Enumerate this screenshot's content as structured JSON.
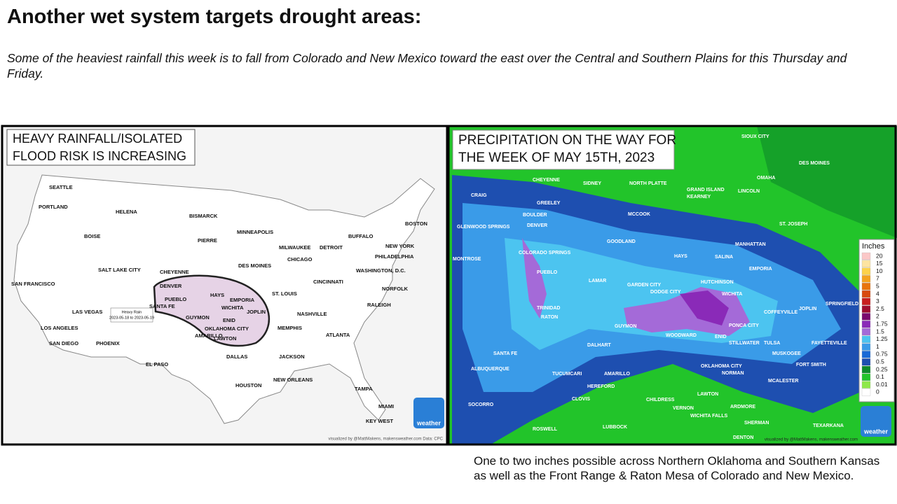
{
  "header": {
    "title": "Another wet system targets drought areas:",
    "subtitle": "Some of the heaviest rainfall this week is to fall from Colorado and New Mexico toward the east over the Central and Southern Plains for this Thursday and Friday."
  },
  "panels": [
    {
      "title": [
        "HEAVY RAINFALL/ISOLATED",
        "FLOOD RISK IS INCREASING"
      ],
      "labels": [
        "SEATTLE",
        "PORTLAND",
        "HELENA",
        "BOISE",
        "SALT LAKE CITY",
        "CHEYENNE",
        "DENVER",
        "SAN FRANCISCO",
        "LAS VEGAS",
        "LOS ANGELES",
        "SAN DIEGO",
        "PHOENIX",
        "SANTA FE",
        "OKLAHOMA CITY",
        "DALLAS",
        "HOUSTON",
        "BISMARCK",
        "PIERRE",
        "MINNEAPOLIS",
        "DES MOINES",
        "MILWAUKEE",
        "CHICAGO",
        "DETROIT",
        "ST. LOUIS",
        "NASHVILLE",
        "MEMPHIS",
        "ATLANTA",
        "JACKSON",
        "NEW ORLEANS",
        "TAMPA",
        "MIAMI",
        "RALEIGH",
        "NORFOLK",
        "WASHINGTON, D.C.",
        "PHILADELPHIA",
        "NEW YORK",
        "BOSTON",
        "BUFFALO",
        "CINCINNATI",
        "PUEBLO",
        "HAYS",
        "EMPORIA",
        "WICHITA",
        "JOPLIN",
        "GUYMON",
        "ENID",
        "LAWTON",
        "AMARILLO",
        "EL PASO",
        "KEY WEST"
      ],
      "annotation": [
        "Heavy Rain",
        "2023-05-18 to 2023-05-19"
      ],
      "credit": "visualized by @MattMakens, makensweather.com Data: CPC",
      "logo": "weather"
    },
    {
      "title": [
        "PRECIPITATION ON THE WAY FOR",
        "THE WEEK OF MAY 15TH, 2023"
      ],
      "labels": [
        "CHEYENNE",
        "DENVER",
        "BOULDER",
        "GREELEY",
        "COLORADO SPRINGS",
        "PUEBLO",
        "TRINIDAD",
        "RATON",
        "SANTA FE",
        "ALBUQUERQUE",
        "GUYMON",
        "GARDEN CITY",
        "DODGE CITY",
        "HAYS",
        "SALINA",
        "HUTCHINSON",
        "WICHITA",
        "EMPORIA",
        "MANHATTAN",
        "OMAHA",
        "LINCOLN",
        "DES MOINES",
        "OKLAHOMA CITY",
        "ENID",
        "PONCA CITY",
        "WOODWARD",
        "STILLWATER",
        "TULSA",
        "NORMAN",
        "LAWTON",
        "AMARILLO",
        "DALHART",
        "CLOVIS",
        "LUBBOCK",
        "ROSWELL",
        "WICHITA FALLS",
        "ARDMORE",
        "SHERMAN",
        "DENTON",
        "TUCUMCARI",
        "HEREFORD",
        "CHILDRESS",
        "VERNON",
        "COFFEYVILLE",
        "JOPLIN",
        "SPRINGFIELD",
        "FAYETTEVILLE",
        "FORT SMITH",
        "MUSKOGEE",
        "MCALESTER",
        "TEXARKANA",
        "GOODLAND",
        "LAMAR",
        "NORTH PLATTE",
        "KEARNEY",
        "GRAND ISLAND",
        "SIOUX CITY",
        "MCCOOK",
        "ST. JOSEPH",
        "GLENWOOD SPRINGS",
        "CRAIG",
        "MONTROSE",
        "SOCORRO",
        "SIDNEY"
      ],
      "legend": {
        "title": "Inches",
        "items": [
          {
            "label": "20",
            "color": "#fbc8c8"
          },
          {
            "label": "15",
            "color": "#fde4a0"
          },
          {
            "label": "10",
            "color": "#fdd24a"
          },
          {
            "label": "7",
            "color": "#f4a21e"
          },
          {
            "label": "5",
            "color": "#e8740e"
          },
          {
            "label": "4",
            "color": "#d84a10"
          },
          {
            "label": "3",
            "color": "#c81e1e"
          },
          {
            "label": "2.5",
            "color": "#9e0c2e"
          },
          {
            "label": "2",
            "color": "#7a0a6e"
          },
          {
            "label": "1.75",
            "color": "#8a2ab8"
          },
          {
            "label": "1.5",
            "color": "#a46ad8"
          },
          {
            "label": "1.25",
            "color": "#4cc4f0"
          },
          {
            "label": "1",
            "color": "#3a9be8"
          },
          {
            "label": "0.75",
            "color": "#1a6ad6"
          },
          {
            "label": "0.5",
            "color": "#1e4fb0"
          },
          {
            "label": "0.25",
            "color": "#0e8a2a"
          },
          {
            "label": "0.1",
            "color": "#22c42a"
          },
          {
            "label": "0.01",
            "color": "#8ee84a"
          },
          {
            "label": "0",
            "color": "#ffffff"
          }
        ]
      },
      "credit": "visualized by @MattMakens, makensweather.com",
      "logo": "weather"
    }
  ],
  "caption": "One to two inches possible across Northern Oklahoma and Southern Kansas as well as the Front Range & Raton Mesa of Colorado and New Mexico."
}
